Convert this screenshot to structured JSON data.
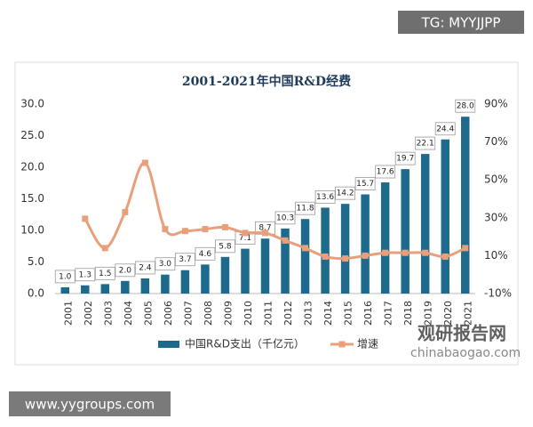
{
  "chart_data": {
    "type": "bar-line",
    "title": "2001-2021年中国R&D经费",
    "categories": [
      "2001",
      "2002",
      "2003",
      "2004",
      "2005",
      "2006",
      "2007",
      "2008",
      "2009",
      "2010",
      "2011",
      "2012",
      "2013",
      "2014",
      "2015",
      "2016",
      "2017",
      "2018",
      "2019",
      "2020",
      "2021"
    ],
    "series": [
      {
        "name": "中国R&D支出（千亿元）",
        "color": "#1d6a8c",
        "type": "bar",
        "values": [
          1.0,
          1.3,
          1.5,
          2.0,
          2.4,
          3.0,
          3.7,
          4.6,
          5.8,
          7.1,
          8.7,
          10.3,
          11.8,
          13.6,
          14.2,
          15.7,
          17.6,
          19.7,
          22.1,
          24.4,
          28.0
        ],
        "value_labels": [
          "1.0",
          "1.3",
          "1.5",
          "2.0",
          "2.4",
          "3.0",
          "3.7",
          "4.6",
          "5.8",
          "7.1",
          "8.7",
          "10.3",
          "11.8",
          "13.6",
          "14.2",
          "15.7",
          "17.6",
          "19.7",
          "22.1",
          "24.4",
          "28.0"
        ]
      },
      {
        "name": "增速",
        "color": "#e8a07c",
        "type": "line",
        "axis": "y2",
        "values": [
          null,
          29.5,
          14,
          33,
          59,
          24,
          23,
          24,
          25,
          22,
          22,
          18,
          14,
          9.5,
          8.5,
          10,
          11.5,
          11.5,
          11.5,
          9.5,
          14
        ]
      }
    ],
    "ylim": [
      0,
      30
    ],
    "yticks": [
      {
        "value": 0,
        "label": "0.0"
      },
      {
        "value": 5,
        "label": "5.0"
      },
      {
        "value": 10,
        "label": "10.0"
      },
      {
        "value": 15,
        "label": "15.0"
      },
      {
        "value": 20,
        "label": "20.0"
      },
      {
        "value": 25,
        "label": "25.0"
      },
      {
        "value": 30,
        "label": "30.0"
      }
    ],
    "y2lim": [
      -10,
      90
    ],
    "y2ticks": [
      {
        "value": -10,
        "label": "-10%"
      },
      {
        "value": 10,
        "label": "10%"
      },
      {
        "value": 30,
        "label": "30%"
      },
      {
        "value": 50,
        "label": "50%"
      },
      {
        "value": 70,
        "label": "70%"
      },
      {
        "value": 90,
        "label": "90%"
      }
    ],
    "legend": "bottom"
  },
  "watermarks": {
    "top": "TG: MYYJJPP",
    "bottom_left": "www.yygroups.com",
    "brand": "观研报告网",
    "brand_url": "chinabaogao.com"
  }
}
